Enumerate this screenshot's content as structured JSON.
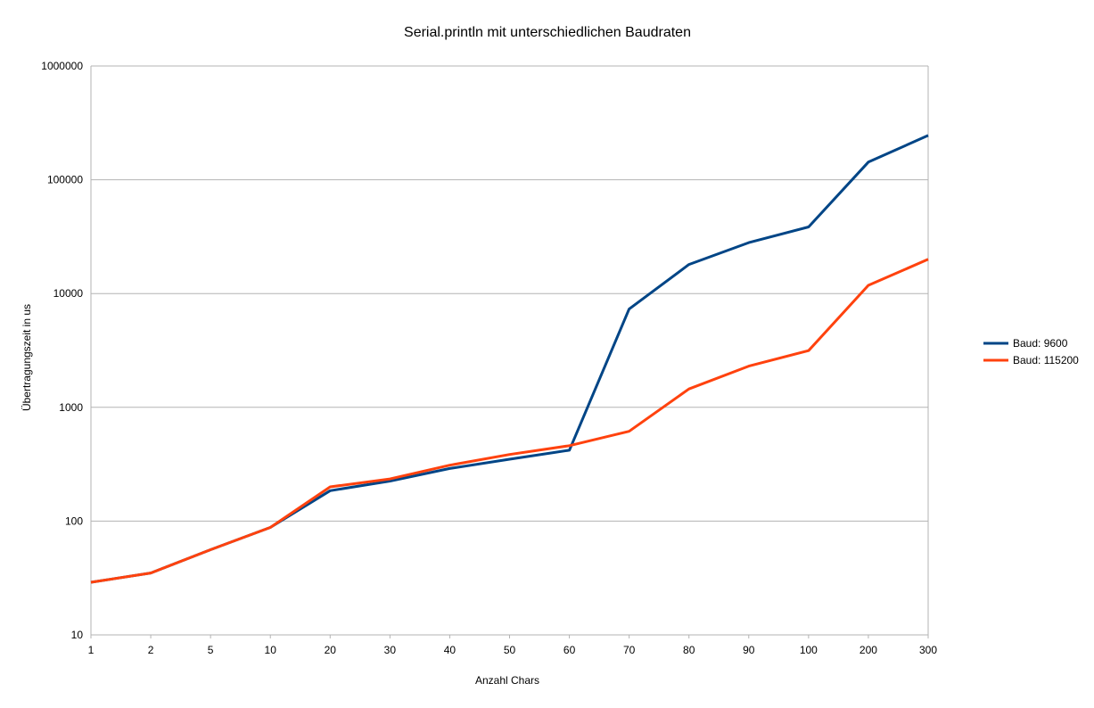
{
  "chart_data": {
    "type": "line",
    "title": "Serial.println mit unterschiedlichen Baudraten",
    "xlabel": "Anzahl Chars",
    "ylabel": "Übertragungszeit in us",
    "y_scale": "log",
    "ylim": [
      10,
      1000000
    ],
    "y_ticks": [
      "10",
      "100",
      "1000",
      "10000",
      "100000",
      "1000000"
    ],
    "grid": "horizontal",
    "legend_position": "right",
    "categories": [
      "1",
      "2",
      "5",
      "10",
      "20",
      "30",
      "40",
      "50",
      "60",
      "70",
      "80",
      "90",
      "100",
      "200",
      "300"
    ],
    "series": [
      {
        "name": "Baud: 9600",
        "color": "#004586",
        "values": [
          29,
          35,
          56,
          88,
          185,
          225,
          290,
          350,
          420,
          7300,
          18000,
          28000,
          38500,
          143000,
          245000
        ]
      },
      {
        "name": "Baud: 115200",
        "color": "#ff420e",
        "values": [
          29,
          35,
          56,
          88,
          200,
          235,
          310,
          385,
          460,
          615,
          1450,
          2300,
          3150,
          11800,
          20000
        ]
      }
    ]
  }
}
